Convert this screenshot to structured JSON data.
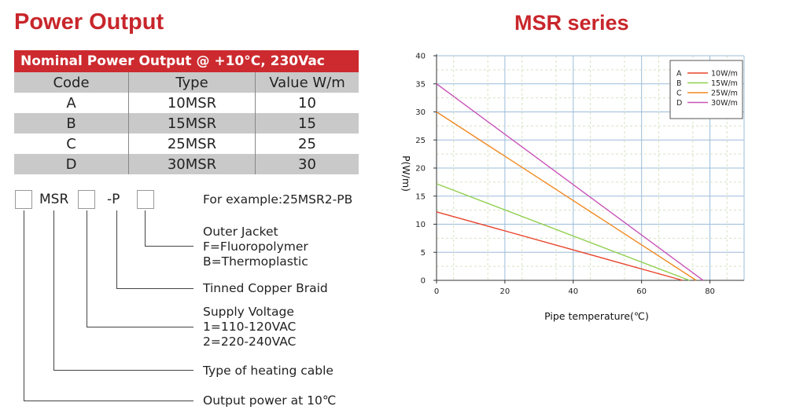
{
  "left": {
    "title": "Power Output",
    "table": {
      "caption": "Nominal Power Output @ +10°C, 230Vac",
      "headers": [
        "Code",
        "Type",
        "Value W/m"
      ],
      "rows": [
        [
          "A",
          "10MSR",
          "10"
        ],
        [
          "B",
          "15MSR",
          "15"
        ],
        [
          "C",
          "25MSR",
          "25"
        ],
        [
          "D",
          "30MSR",
          "30"
        ]
      ]
    },
    "code": {
      "mid_text": "MSR",
      "dash_p": "-P",
      "example": "For example:25MSR2-PB"
    },
    "legend": {
      "jacket_title": "Outer Jacket",
      "jacket_f": "F=Fluoropolymer",
      "jacket_b": "B=Thermoplastic",
      "braid": "Tinned Copper Braid",
      "voltage_title": "Supply Voltage",
      "voltage_1": "1=110-120VAC",
      "voltage_2": "2=220-240VAC",
      "cable_type": "Type of heating cable",
      "output": "Output power at 10℃"
    }
  },
  "chart_data": {
    "type": "line",
    "title": "MSR series",
    "xlabel": "Pipe temperature(℃)",
    "ylabel": "P(W/m)",
    "xlim": [
      0,
      90
    ],
    "ylim": [
      0,
      40
    ],
    "xticks": [
      0,
      20,
      40,
      60,
      80
    ],
    "yticks": [
      0,
      5,
      10,
      15,
      20,
      25,
      30,
      35,
      40
    ],
    "grid": true,
    "legend_position": "top-right",
    "series": [
      {
        "name": "10W/m",
        "code": "A",
        "color": "#e8452c",
        "x": [
          0,
          72
        ],
        "y": [
          12.2,
          0
        ]
      },
      {
        "name": "15W/m",
        "code": "B",
        "color": "#8fcf4e",
        "x": [
          0,
          74
        ],
        "y": [
          17.2,
          0
        ]
      },
      {
        "name": "25W/m",
        "code": "C",
        "color": "#f08a24",
        "x": [
          0,
          76
        ],
        "y": [
          30,
          0
        ]
      },
      {
        "name": "30W/m",
        "code": "D",
        "color": "#c855b8",
        "x": [
          0,
          78
        ],
        "y": [
          35,
          0
        ]
      }
    ]
  }
}
